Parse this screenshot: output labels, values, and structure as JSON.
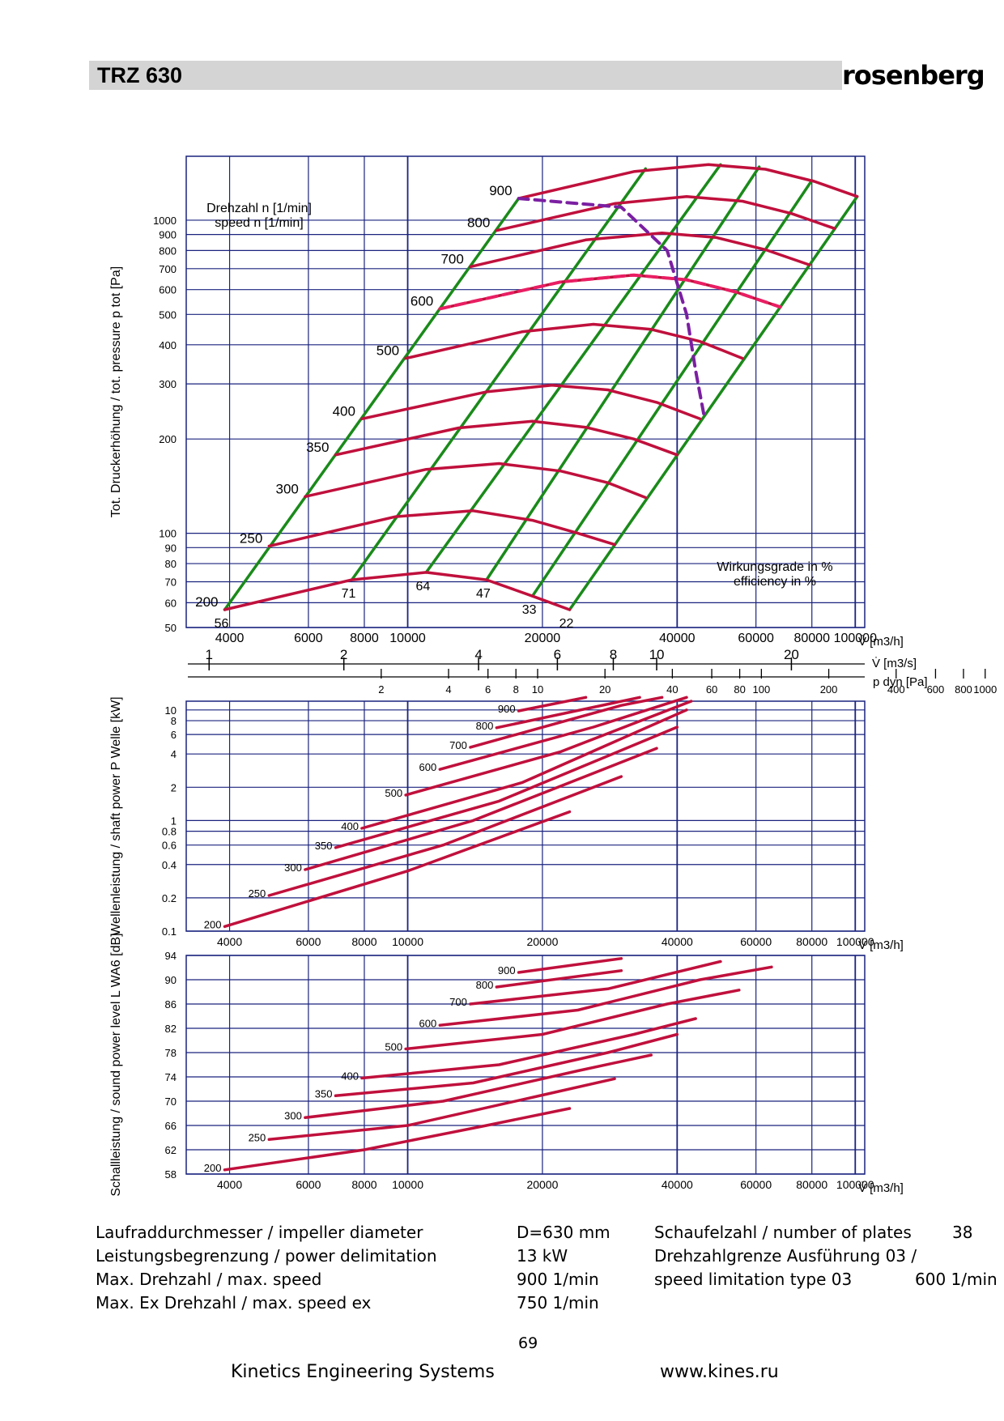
{
  "header": {
    "title": "TRZ 630",
    "brand": "rosenberg"
  },
  "specs": {
    "impeller_label": "Laufraddurchmesser / impeller diameter",
    "impeller_value": "D=630 mm",
    "power_label": "Leistungsbegrenzung / power delimitation",
    "power_value": "13 kW",
    "maxspeed_label": "Max. Drehzahl / max. speed",
    "maxspeed_value": "900 1/min",
    "maxex_label": "Max. Ex Drehzahl / max. speed ex",
    "maxex_value": "750 1/min",
    "plates_label": "Schaufelzahl / number of plates",
    "plates_value": "38",
    "limit_label1": "Drehzahlgrenze Ausführung 03 /",
    "limit_label2": "speed limitation type 03",
    "limit_value": "600 1/min"
  },
  "footer": {
    "page": "69",
    "company": "Kinetics Engineering Systems",
    "url": "www.kines.ru"
  },
  "colors": {
    "curve": "#c0103c",
    "efficiency": "#1a8a1a",
    "grid": "#1a237e",
    "dashed_limit": "#7b1fa2",
    "dashed_600": "#e91e63"
  },
  "chart_data": [
    {
      "type": "line",
      "name": "pressure",
      "ylabel": "Tot. Druckerhöhung / tot. pressure p tot [Pa]",
      "xlabel": "V̇ [m3/h]",
      "speed_label": "Drehzahl n [1/min] / speed n [1/min]",
      "efficiency_label": "Wirkungsgrade in % / efficiency in %",
      "y_scale": "log",
      "ylim": [
        50,
        1600
      ],
      "y_ticks": [
        "1000",
        "900",
        "800",
        "700",
        "600",
        "500",
        "400",
        "300",
        "200",
        "100",
        "90",
        "80",
        "70",
        "60",
        "50"
      ],
      "x_scale": "log",
      "xlim": [
        3200,
        105000
      ],
      "x_ticks": [
        "4000",
        "6000",
        "8000",
        "10000",
        "20000",
        "40000",
        "60000",
        "80000",
        "100000"
      ],
      "x2_label": "V̇ [m3/s]",
      "x2_ticks": [
        "1",
        "2",
        "4",
        "6",
        "8",
        "10",
        "20"
      ],
      "x3_label": "p dyn [Pa]",
      "x3_ticks": [
        "2",
        "4",
        "6",
        "8",
        "10",
        "20",
        "40",
        "60",
        "80",
        "100",
        "200",
        "400",
        "600",
        "800",
        "1000"
      ],
      "series": [
        {
          "name": "200",
          "x": [
            3900,
            7500,
            11000,
            15000,
            19000,
            23000
          ],
          "y": [
            57,
            71,
            75,
            71,
            63,
            57
          ]
        },
        {
          "name": "250",
          "x": [
            4900,
            9400,
            14000,
            19000,
            24000,
            29000
          ],
          "y": [
            91,
            113,
            118,
            110,
            100,
            92
          ]
        },
        {
          "name": "300",
          "x": [
            5900,
            11000,
            16000,
            22000,
            28000,
            34000
          ],
          "y": [
            131,
            160,
            167,
            158,
            145,
            130
          ]
        },
        {
          "name": "350",
          "x": [
            6900,
            13000,
            19000,
            25000,
            32000,
            40000
          ],
          "y": [
            178,
            217,
            228,
            218,
            200,
            178
          ]
        },
        {
          "name": "400",
          "x": [
            7900,
            15000,
            21000,
            28000,
            36000,
            45000
          ],
          "y": [
            232,
            283,
            297,
            287,
            262,
            232
          ]
        },
        {
          "name": "500",
          "x": [
            9900,
            18000,
            26000,
            35000,
            45000,
            56000
          ],
          "y": [
            362,
            440,
            465,
            448,
            410,
            362
          ]
        },
        {
          "name": "600",
          "x": [
            11800,
            22000,
            32000,
            42000,
            54000,
            68000
          ],
          "y": [
            521,
            635,
            668,
            645,
            590,
            528
          ]
        },
        {
          "name": "700",
          "x": [
            13800,
            25000,
            37000,
            49000,
            63000,
            79000
          ],
          "y": [
            710,
            865,
            910,
            880,
            805,
            720
          ]
        },
        {
          "name": "800",
          "x": [
            15800,
            29000,
            42000,
            56000,
            72000,
            90000
          ],
          "y": [
            927,
            1130,
            1190,
            1150,
            1050,
            940
          ]
        },
        {
          "name": "900",
          "x": [
            17700,
            32000,
            47000,
            63000,
            81000,
            101000
          ],
          "y": [
            1173,
            1430,
            1505,
            1455,
            1330,
            1190
          ]
        }
      ],
      "efficiency_lines": [
        {
          "name": "56",
          "x": [
            3900,
            17700
          ],
          "y": [
            57,
            1173
          ]
        },
        {
          "name": "71",
          "x": [
            7500,
            34000
          ],
          "y": [
            71,
            1460
          ]
        },
        {
          "name": "64",
          "x": [
            11000,
            50000
          ],
          "y": [
            75,
            1505
          ]
        },
        {
          "name": "47",
          "x": [
            15000,
            61000
          ],
          "y": [
            71,
            1480
          ]
        },
        {
          "name": "33",
          "x": [
            19000,
            80000
          ],
          "y": [
            63,
            1340
          ]
        },
        {
          "name": "22",
          "x": [
            23000,
            101000
          ],
          "y": [
            57,
            1190
          ]
        }
      ],
      "limit_curves": [
        {
          "name": "power-limit",
          "x": [
            17700,
            30000,
            38000,
            42000,
            44000,
            46000
          ],
          "y": [
            1173,
            1100,
            800,
            500,
            330,
            235
          ]
        },
        {
          "name": "speed-limit-600",
          "x": [
            11800,
            22000,
            32000,
            42000,
            54000,
            68000
          ],
          "y": [
            521,
            635,
            668,
            645,
            590,
            528
          ]
        }
      ]
    },
    {
      "type": "line",
      "name": "shaft power",
      "ylabel": "Wellenleistung / shaft power P Welle [kW]",
      "xlabel": "V̇ [m3/h]",
      "y_scale": "log",
      "ylim": [
        0.1,
        12
      ],
      "y_ticks": [
        "10",
        "8",
        "6",
        "4",
        "2",
        "1",
        "0.8",
        "0.6",
        "0.4",
        "0.2",
        "0.1"
      ],
      "x_scale": "log",
      "xlim": [
        3200,
        105000
      ],
      "x_ticks": [
        "4000",
        "6000",
        "8000",
        "10000",
        "20000",
        "40000",
        "60000",
        "80000",
        "100000"
      ],
      "series": [
        {
          "name": "200",
          "x": [
            3900,
            10000,
            23000
          ],
          "y": [
            0.11,
            0.35,
            1.2
          ]
        },
        {
          "name": "250",
          "x": [
            4900,
            12000,
            30000
          ],
          "y": [
            0.21,
            0.6,
            2.5
          ]
        },
        {
          "name": "300",
          "x": [
            5900,
            14000,
            36000
          ],
          "y": [
            0.36,
            1.0,
            4.5
          ]
        },
        {
          "name": "350",
          "x": [
            6900,
            16000,
            40000
          ],
          "y": [
            0.57,
            1.5,
            7.0
          ]
        },
        {
          "name": "400",
          "x": [
            7900,
            18000,
            42000
          ],
          "y": [
            0.85,
            2.2,
            10.0
          ]
        },
        {
          "name": "500",
          "x": [
            9900,
            22000,
            43000
          ],
          "y": [
            1.7,
            4.2,
            12.0
          ]
        },
        {
          "name": "600",
          "x": [
            11800,
            26000,
            42000
          ],
          "y": [
            2.9,
            7.0,
            13.0
          ]
        },
        {
          "name": "700",
          "x": [
            13800,
            30000,
            37000
          ],
          "y": [
            4.6,
            11.0,
            13.0
          ]
        },
        {
          "name": "800",
          "x": [
            15800,
            33000
          ],
          "y": [
            6.9,
            13.0
          ]
        },
        {
          "name": "900",
          "x": [
            17700,
            25000
          ],
          "y": [
            9.8,
            13.0
          ]
        }
      ]
    },
    {
      "type": "line",
      "name": "sound power",
      "ylabel": "Schallleistung / sound power level L WA6 [dB]",
      "xlabel": "V̇ [m3/h]",
      "y_scale": "linear",
      "ylim": [
        58,
        94
      ],
      "y_ticks": [
        "94",
        "90",
        "86",
        "82",
        "78",
        "74",
        "70",
        "66",
        "62",
        "58"
      ],
      "x_scale": "log",
      "xlim": [
        3200,
        105000
      ],
      "x_ticks": [
        "4000",
        "6000",
        "8000",
        "10000",
        "20000",
        "40000",
        "60000",
        "80000",
        "100000"
      ],
      "series": [
        {
          "name": "200",
          "x": [
            3900,
            8000,
            15000,
            23000
          ],
          "y": [
            58.7,
            62,
            66,
            68.8
          ]
        },
        {
          "name": "250",
          "x": [
            4900,
            10000,
            20000,
            29000
          ],
          "y": [
            63.7,
            66,
            71,
            73.7
          ]
        },
        {
          "name": "300",
          "x": [
            5900,
            12000,
            24000,
            35000
          ],
          "y": [
            67.3,
            70,
            75,
            77.6
          ]
        },
        {
          "name": "350",
          "x": [
            6900,
            14000,
            28000,
            40000
          ],
          "y": [
            70.9,
            73,
            78,
            81
          ]
        },
        {
          "name": "400",
          "x": [
            7900,
            16000,
            32000,
            44000
          ],
          "y": [
            73.8,
            76,
            81,
            83.6
          ]
        },
        {
          "name": "500",
          "x": [
            9900,
            20000,
            38000,
            55000
          ],
          "y": [
            78.6,
            81,
            86,
            88.3
          ]
        },
        {
          "name": "600",
          "x": [
            11800,
            24000,
            45000,
            65000
          ],
          "y": [
            82.5,
            85,
            90,
            92.1
          ]
        },
        {
          "name": "700",
          "x": [
            13800,
            28000,
            50000
          ],
          "y": [
            86,
            88.5,
            93
          ]
        },
        {
          "name": "800",
          "x": [
            15800,
            30000
          ],
          "y": [
            88.8,
            91.5
          ]
        },
        {
          "name": "900",
          "x": [
            17700,
            30000
          ],
          "y": [
            91.2,
            93.5
          ]
        }
      ]
    }
  ]
}
